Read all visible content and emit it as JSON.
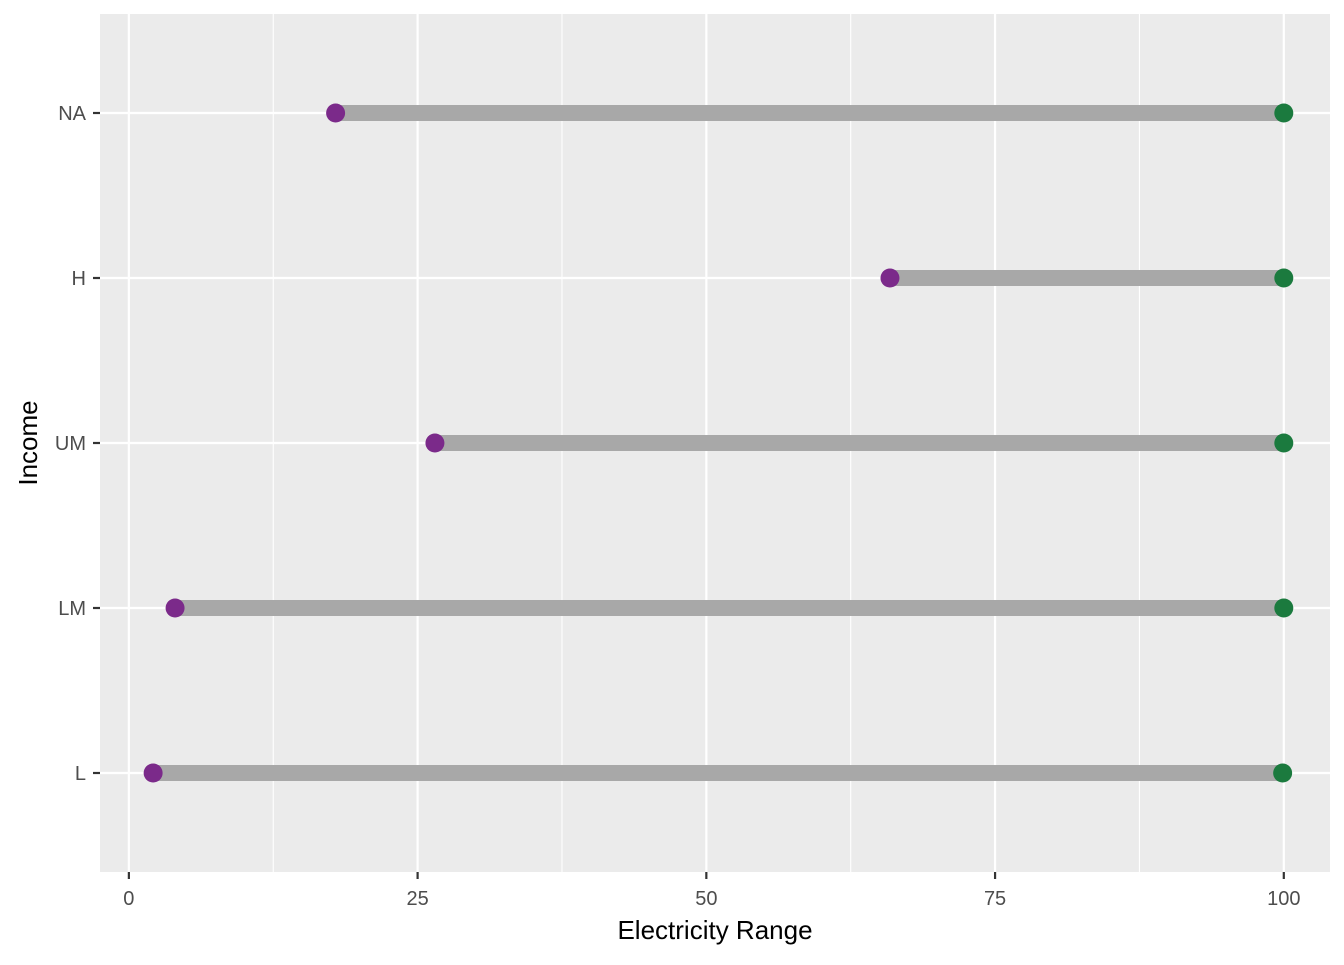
{
  "chart_data": {
    "type": "dumbbell",
    "title": "",
    "xlabel": "Electricity Range",
    "ylabel": "Income",
    "xlim": [
      -2.5,
      104
    ],
    "x_ticks": [
      0,
      25,
      50,
      75,
      100
    ],
    "x_tick_labels": [
      "0",
      "25",
      "50",
      "75",
      "100"
    ],
    "categories": [
      "L",
      "LM",
      "UM",
      "H",
      "NA"
    ],
    "series": [
      {
        "name": "min",
        "values": [
          2.1,
          4,
          26.5,
          65.9,
          17.9
        ],
        "color": "#7b2a8a"
      },
      {
        "name": "max",
        "values": [
          99.9,
          100,
          100,
          100,
          100
        ],
        "color": "#1b7a3e"
      }
    ],
    "segment_color": "#a8a8a8",
    "panel_background": "#ebebeb",
    "grid": true,
    "legend": "none"
  }
}
